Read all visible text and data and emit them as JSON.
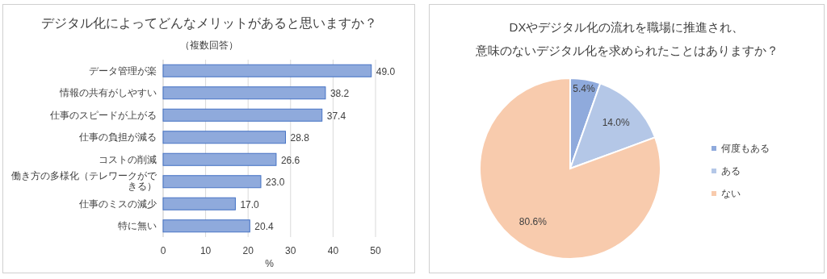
{
  "chart_data": [
    {
      "type": "bar",
      "orientation": "horizontal",
      "title": "デジタル化によってどんなメリットがあると思いますか？",
      "subtitle": "（複数回答）",
      "xlabel": "%",
      "categories": [
        "データ管理が楽",
        "情報の共有がしやすい",
        "仕事のスピードが上がる",
        "仕事の負担が減る",
        "コストの削減",
        "働き方の多様化（テレワークができる）",
        "仕事のミスの減少",
        "特に無い"
      ],
      "values": [
        49.0,
        38.2,
        37.4,
        28.8,
        26.6,
        23.0,
        17.0,
        20.4
      ],
      "value_labels": [
        "49.0",
        "38.2",
        "37.4",
        "28.8",
        "26.6",
        "23.0",
        "17.0",
        "20.4"
      ],
      "color": "#8faadc",
      "xlim": [
        0,
        50
      ],
      "xticks": [
        0,
        10,
        20,
        30,
        40,
        50
      ],
      "grid": "x"
    },
    {
      "type": "pie",
      "title": "DXやデジタル化の流れを職場に推進され、意味のないデジタル化を求められたことはありますか？",
      "categories": [
        "何度もある",
        "ある",
        "ない"
      ],
      "values": [
        5.4,
        14.0,
        80.6
      ],
      "value_labels": [
        "5.4%",
        "14.0%",
        "80.6%"
      ],
      "colors": [
        "#8faadc",
        "#b4c7e7",
        "#f8cbad"
      ],
      "legend": "right"
    }
  ]
}
